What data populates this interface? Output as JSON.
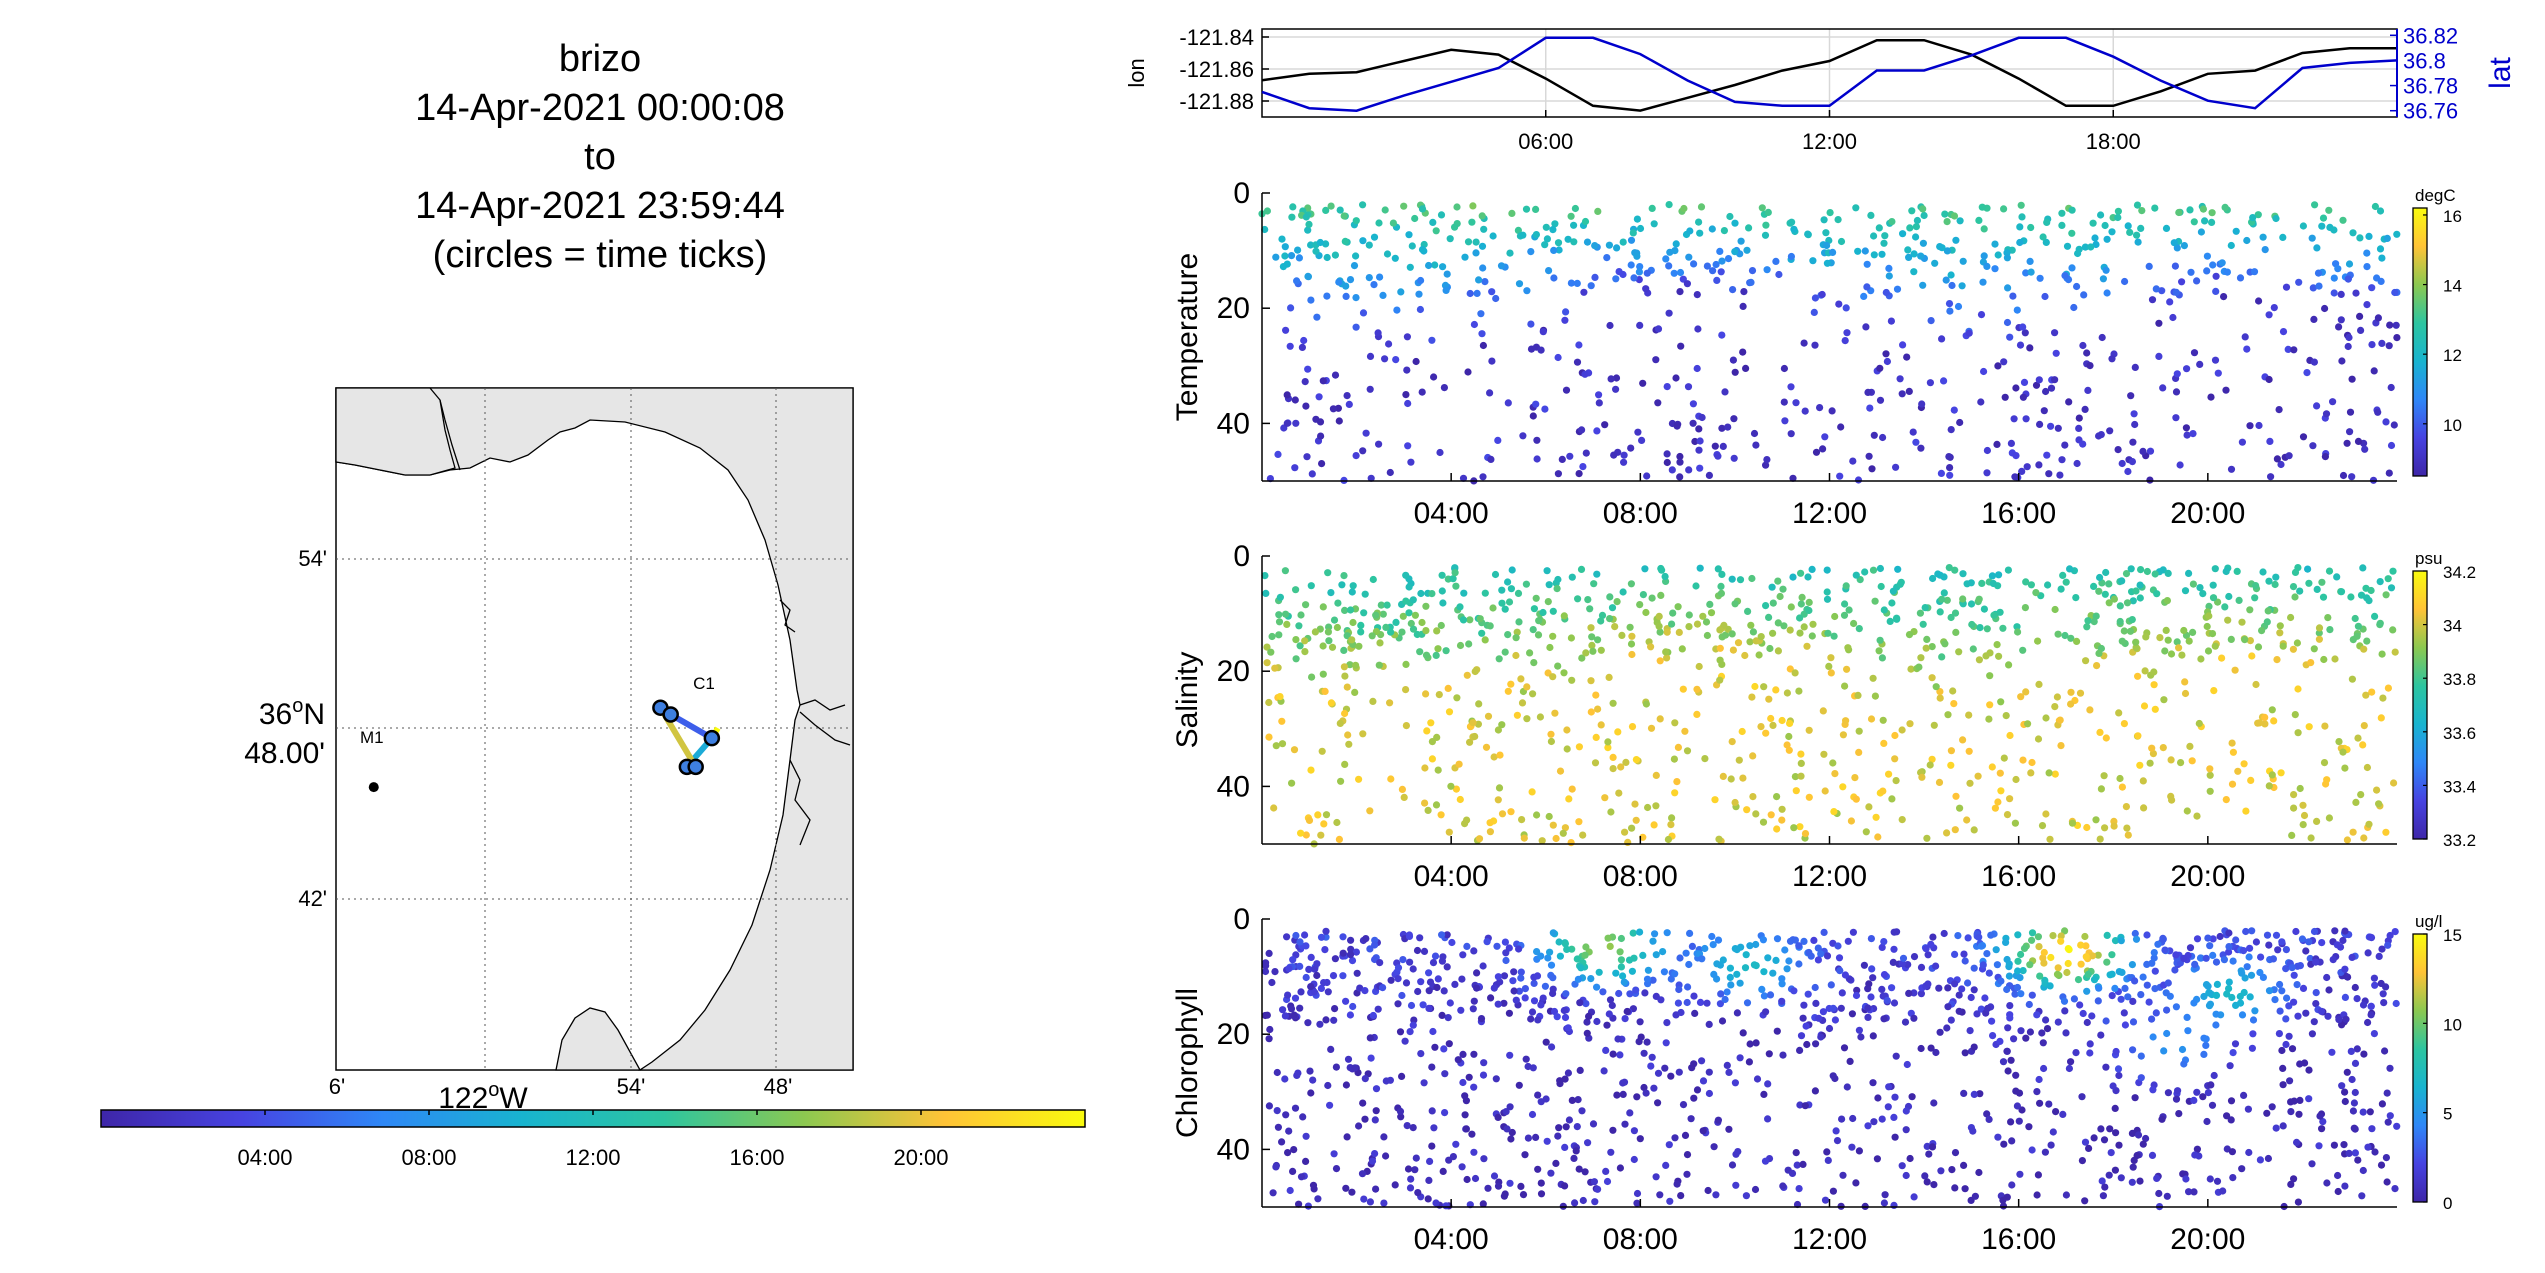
{
  "title": {
    "lines": [
      "brizo",
      "14-Apr-2021 00:00:08",
      "to",
      "14-Apr-2021 23:59:44",
      "(circles = time ticks)"
    ]
  },
  "colors": {
    "lon": "#000000",
    "lat": "#0000cc",
    "land": "#e6e6e6",
    "colormap": [
      "#3e26a8",
      "#4743e1",
      "#2e87f7",
      "#18b4cf",
      "#2dc5a0",
      "#8cc850",
      "#ffc337",
      "#f9fb0e"
    ]
  },
  "chart_data": [
    {
      "id": "map",
      "type": "scatter",
      "description_none": "",
      "x_ticks": [
        "6'",
        "54'",
        "48'"
      ],
      "x_center_label": "122",
      "x_center_sup": "o",
      "x_center_suffix": "W",
      "y_ticks": [
        "54'",
        "42'"
      ],
      "y_center_label_line1": "36",
      "y_center_sup": "o",
      "y_center_suffix": "N",
      "y_center_label_line2": "48.00'",
      "markers": [
        {
          "label": "M1",
          "lon": -122.075,
          "lat": 36.765
        },
        {
          "label": "C1",
          "lon": -121.849,
          "lat": 36.797
        }
      ],
      "track_ticks": [
        {
          "lon": -121.88,
          "lat": 36.812
        },
        {
          "lon": -121.873,
          "lat": 36.808
        },
        {
          "lon": -121.845,
          "lat": 36.794
        },
        {
          "lon": -121.862,
          "lat": 36.777
        },
        {
          "lon": -121.856,
          "lat": 36.777
        }
      ],
      "colorbar": {
        "ticks": [
          "04:00",
          "08:00",
          "12:00",
          "16:00",
          "20:00"
        ],
        "tick_hours": [
          4,
          8,
          12,
          16,
          20
        ],
        "range_hours": [
          0,
          24
        ]
      }
    },
    {
      "id": "lonlat",
      "type": "line",
      "x_ticks": [
        "06:00",
        "12:00",
        "18:00"
      ],
      "x_tick_hours": [
        6,
        12,
        18
      ],
      "xlim_hours": [
        0,
        24
      ],
      "ylabel_left": "lon",
      "ylabel_right": "lat",
      "ylim_left": [
        -121.89,
        -121.835
      ],
      "ylim_right": [
        36.755,
        36.825
      ],
      "y_ticks_left": [
        "-121.84",
        "-121.86",
        "-121.88"
      ],
      "y_tick_values_left": [
        -121.84,
        -121.86,
        -121.88
      ],
      "y_ticks_right": [
        "36.82",
        "36.8",
        "36.78",
        "36.76"
      ],
      "y_tick_values_right": [
        36.82,
        36.8,
        36.78,
        36.76
      ],
      "series": [
        {
          "name": "lon",
          "axis": "left",
          "x": [
            0,
            1,
            2,
            3,
            4,
            5,
            6,
            7,
            8,
            9,
            10,
            11,
            12,
            13,
            14,
            15,
            16,
            17,
            18,
            19,
            20,
            21,
            22,
            23,
            24
          ],
          "y": [
            -121.867,
            -121.863,
            -121.862,
            -121.855,
            -121.848,
            -121.851,
            -121.866,
            -121.883,
            -121.886,
            -121.878,
            -121.87,
            -121.861,
            -121.855,
            -121.842,
            -121.842,
            -121.851,
            -121.866,
            -121.883,
            -121.883,
            -121.874,
            -121.863,
            -121.861,
            -121.85,
            -121.847,
            -121.847
          ]
        },
        {
          "name": "lat",
          "axis": "right",
          "x": [
            0,
            1,
            2,
            3,
            4,
            5,
            6,
            7,
            8,
            9,
            10,
            11,
            12,
            13,
            14,
            15,
            16,
            17,
            18,
            19,
            20,
            21,
            22,
            23,
            24
          ],
          "y": [
            36.775,
            36.762,
            36.76,
            36.772,
            36.783,
            36.794,
            36.818,
            36.818,
            36.805,
            36.784,
            36.767,
            36.764,
            36.764,
            36.792,
            36.792,
            36.804,
            36.818,
            36.818,
            36.803,
            36.784,
            36.768,
            36.762,
            36.794,
            36.798,
            36.8
          ]
        }
      ]
    },
    {
      "id": "temperature",
      "type": "scatter",
      "ylabel": "Temperature",
      "ylim": [
        0,
        50
      ],
      "y_ticks": [
        "0",
        "20",
        "40"
      ],
      "y_tick_values": [
        0,
        20,
        40
      ],
      "x_ticks": [
        "04:00",
        "08:00",
        "12:00",
        "16:00",
        "20:00"
      ],
      "x_tick_hours": [
        4,
        8,
        12,
        16,
        20
      ],
      "xlim_hours": [
        0,
        24
      ],
      "colorbar": {
        "unit": "degC",
        "ticks": [
          "16",
          "14",
          "12",
          "10"
        ],
        "tick_values": [
          16,
          14,
          12,
          10
        ],
        "range": [
          8.5,
          16.2
        ]
      },
      "surface_value": 13.2,
      "deep_value": 9.0,
      "mixed_depth": [
        10,
        20
      ],
      "n_points": 900,
      "seed": 11
    },
    {
      "id": "salinity",
      "type": "scatter",
      "ylabel": "Salinity",
      "ylim": [
        0,
        50
      ],
      "y_ticks": [
        "0",
        "20",
        "40"
      ],
      "y_tick_values": [
        0,
        20,
        40
      ],
      "x_ticks": [
        "04:00",
        "08:00",
        "12:00",
        "16:00",
        "20:00"
      ],
      "x_tick_hours": [
        4,
        8,
        12,
        16,
        20
      ],
      "xlim_hours": [
        0,
        24
      ],
      "colorbar": {
        "unit": "psu",
        "ticks": [
          "34.2",
          "34",
          "33.8",
          "33.6",
          "33.4",
          "33.2"
        ],
        "tick_values": [
          34.2,
          34.0,
          33.8,
          33.6,
          33.4,
          33.2
        ],
        "range": [
          33.2,
          34.2
        ]
      },
      "surface_value": 33.72,
      "deep_value": 34.02,
      "mixed_depth": [
        10,
        20
      ],
      "n_points": 1100,
      "seed": 23
    },
    {
      "id": "chlorophyll",
      "type": "scatter",
      "ylabel": "Chlorophyll",
      "ylim": [
        0,
        50
      ],
      "y_ticks": [
        "0",
        "20",
        "40"
      ],
      "y_tick_values": [
        0,
        20,
        40
      ],
      "x_ticks": [
        "04:00",
        "08:00",
        "12:00",
        "16:00",
        "20:00"
      ],
      "x_tick_hours": [
        4,
        8,
        12,
        16,
        20
      ],
      "xlim_hours": [
        0,
        24
      ],
      "colorbar": {
        "unit": "ug/l",
        "ticks": [
          "15",
          "10",
          "5",
          "0"
        ],
        "tick_values": [
          15,
          10,
          5,
          0
        ],
        "range": [
          0,
          15
        ]
      },
      "surface_value": 2.0,
      "deep_value": 0.5,
      "mixed_depth": [
        10,
        20
      ],
      "n_points": 1500,
      "seed": 37,
      "blooms": [
        {
          "hour": 7.2,
          "depth": 5,
          "value": 11
        },
        {
          "hour": 10.3,
          "depth": 8,
          "value": 7
        },
        {
          "hour": 17.0,
          "depth": 6,
          "value": 15
        },
        {
          "hour": 20.5,
          "depth": 13,
          "value": 7
        },
        {
          "hour": 19.2,
          "depth": 22,
          "value": 5
        }
      ]
    }
  ]
}
